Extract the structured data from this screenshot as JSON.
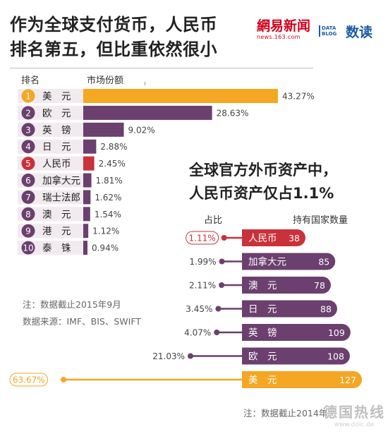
{
  "title": {
    "line1": "作为全球支付货币，人民币",
    "line2": "排名第五，但比重依然很小"
  },
  "logos": {
    "netease_main": "網易新闻",
    "netease_sub": "news.163.com",
    "datablog_small": "DATA BLOG",
    "datablog_main": "数读"
  },
  "colors": {
    "orange": "#f5a623",
    "purple": "#6b3f6e",
    "red": "#c9313b"
  },
  "chart_data": [
    {
      "type": "bar",
      "orientation": "horizontal",
      "headers": {
        "rank": "排名",
        "share": "市场份额"
      },
      "categories": [
        "美　元",
        "欧　元",
        "英　镑",
        "日　元",
        "人民币",
        "加拿大元",
        "瑞士法郎",
        "澳　元",
        "港　元",
        "泰　铢"
      ],
      "ranks": [
        "1",
        "2",
        "3",
        "4",
        "5",
        "6",
        "7",
        "8",
        "9",
        "10"
      ],
      "values": [
        43.27,
        28.63,
        9.02,
        2.88,
        2.45,
        1.81,
        1.62,
        1.54,
        1.12,
        0.94
      ],
      "value_labels": [
        "43.27%",
        "28.63%",
        "9.02%",
        "2.88%",
        "2.45%",
        "1.81%",
        "1.62%",
        "1.54%",
        "1.12%",
        "0.94%"
      ],
      "highlight": [
        "orange",
        "purple",
        "purple",
        "purple",
        "red",
        "purple",
        "purple",
        "purple",
        "purple",
        "purple"
      ],
      "notes": [
        "注：数据截止2015年9月",
        "数据来源：IMF、BIS、SWIFT"
      ]
    },
    {
      "type": "bar",
      "orientation": "horizontal",
      "title_line1": "全球官方外币资产中，",
      "title_line2": "人民币资产仅占1.1%",
      "headers": {
        "share": "占比",
        "countries": "持有国家数量"
      },
      "categories": [
        "人民币",
        "加拿大元",
        "澳　元",
        "日　元",
        "英　镑",
        "欧　元",
        "美　元"
      ],
      "share_labels": [
        "1.11%",
        "1.99%",
        "2.11%",
        "3.45%",
        "4.07%",
        "21.03%",
        "63.67%"
      ],
      "share_values": [
        1.11,
        1.99,
        2.11,
        3.45,
        4.07,
        21.03,
        63.67
      ],
      "country_counts": [
        38,
        85,
        78,
        88,
        109,
        108,
        127
      ],
      "highlight": [
        "red",
        "purple",
        "purple",
        "purple",
        "purple",
        "purple",
        "orange"
      ],
      "note": "注：数据截止2014年"
    }
  ],
  "watermark": {
    "main": "德国热线",
    "sub": "www.dolc.de"
  }
}
